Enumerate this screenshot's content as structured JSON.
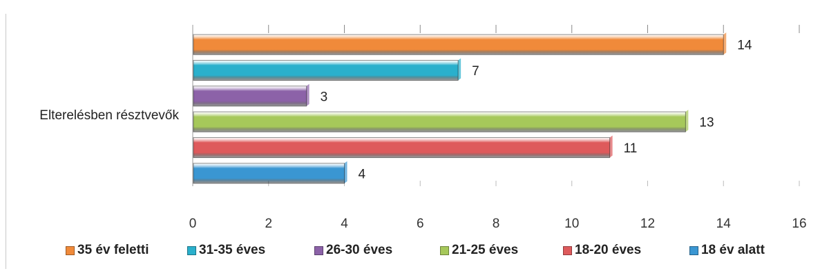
{
  "chart_data": {
    "type": "bar",
    "orientation": "horizontal",
    "categories": [
      "Elterelésben résztvevők"
    ],
    "series": [
      {
        "name": "35 év feletti",
        "values": [
          14
        ],
        "color": "#F08A3A"
      },
      {
        "name": "31-35 éves",
        "values": [
          7
        ],
        "color": "#2AB0CC"
      },
      {
        "name": "26-30 éves",
        "values": [
          3
        ],
        "color": "#8C62A8"
      },
      {
        "name": "21-25 éves",
        "values": [
          13
        ],
        "color": "#A6C85A"
      },
      {
        "name": "18-20 éves",
        "values": [
          11
        ],
        "color": "#DE5A5C"
      },
      {
        "name": "18 év alatt",
        "values": [
          4
        ],
        "color": "#3A96D2"
      }
    ],
    "xlim": [
      0,
      16
    ],
    "xticks": [
      0,
      2,
      4,
      6,
      8,
      10,
      12,
      14,
      16
    ],
    "data_labels": true,
    "grid": false,
    "legend_position": "bottom"
  }
}
